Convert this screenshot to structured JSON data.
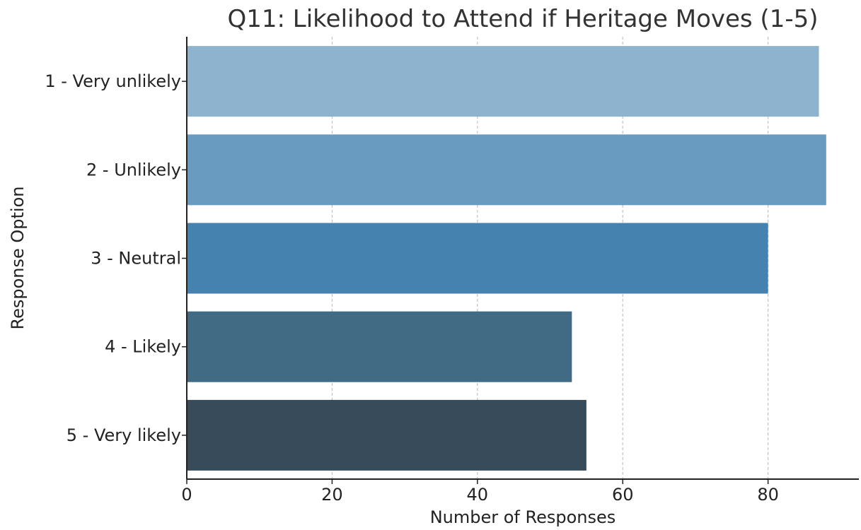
{
  "chart_data": {
    "type": "bar",
    "orientation": "horizontal",
    "title": "Q11: Likelihood to Attend if Heritage Moves (1-5)",
    "xlabel": "Number of Responses",
    "ylabel": "Response Option",
    "categories": [
      "1 - Very unlikely",
      "2 - Unlikely",
      "3 - Neutral",
      "4 - Likely",
      "5 - Very likely"
    ],
    "values": [
      87,
      88,
      80,
      53,
      55
    ],
    "colors": [
      "#8db3cf",
      "#689bbf",
      "#4682b0",
      "#416a84",
      "#374b5b"
    ],
    "xlim": [
      0,
      92.5
    ],
    "xticks": [
      "0",
      "20",
      "40",
      "60",
      "80"
    ],
    "grid": "x-dashed",
    "legend": "none"
  }
}
